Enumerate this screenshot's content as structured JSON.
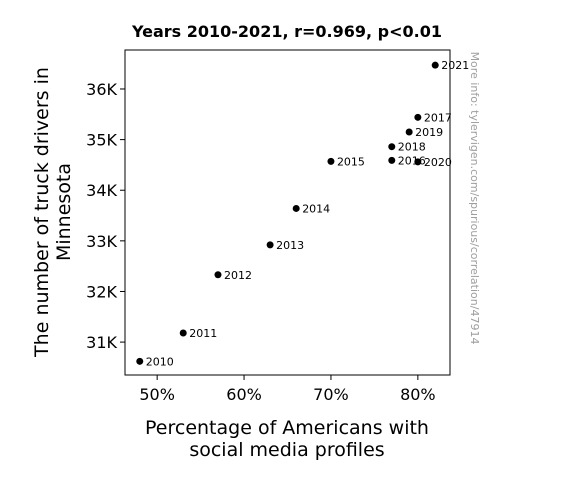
{
  "chart_data": {
    "type": "scatter",
    "title": "Years 2010-2021, r=0.969, p<0.01",
    "xlabel_lines": [
      "Percentage of Americans with",
      "social media profiles"
    ],
    "ylabel_lines": [
      "The number of truck drivers in",
      "Minnesota"
    ],
    "watermark": "More info: tylervigen.com/spurious/correlation/47914",
    "xlim": [
      0.463,
      0.837
    ],
    "ylim": [
      30350,
      36770
    ],
    "xticks": [
      0.5,
      0.6,
      0.7,
      0.8
    ],
    "xtick_labels": [
      "50%",
      "60%",
      "70%",
      "80%"
    ],
    "yticks": [
      31000,
      32000,
      33000,
      34000,
      35000,
      36000
    ],
    "ytick_labels": [
      "31K",
      "32K",
      "33K",
      "34K",
      "35K",
      "36K"
    ],
    "grid": false,
    "marker_color": "#000000",
    "points": [
      {
        "label": "2010",
        "x": 0.48,
        "y": 30620
      },
      {
        "label": "2011",
        "x": 0.53,
        "y": 31180
      },
      {
        "label": "2012",
        "x": 0.57,
        "y": 32330
      },
      {
        "label": "2013",
        "x": 0.63,
        "y": 32920
      },
      {
        "label": "2014",
        "x": 0.66,
        "y": 33640
      },
      {
        "label": "2015",
        "x": 0.7,
        "y": 34570
      },
      {
        "label": "2016",
        "x": 0.77,
        "y": 34590
      },
      {
        "label": "2017",
        "x": 0.8,
        "y": 35440
      },
      {
        "label": "2018",
        "x": 0.77,
        "y": 34860
      },
      {
        "label": "2019",
        "x": 0.79,
        "y": 35150
      },
      {
        "label": "2020",
        "x": 0.8,
        "y": 34560
      },
      {
        "label": "2021",
        "x": 0.82,
        "y": 36470
      }
    ]
  }
}
